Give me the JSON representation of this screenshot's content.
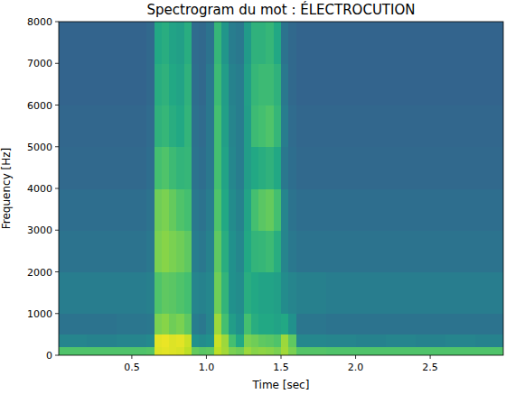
{
  "chart_data": {
    "type": "heatmap",
    "title": "Spectrogram du mot : ÉLECTROCUTION",
    "x_label": "Time [sec]",
    "y_label": "Frequency [Hz]",
    "x": [
      0.01,
      0.2,
      0.4,
      0.6,
      0.65,
      0.7,
      0.75,
      0.8,
      0.85,
      0.9,
      0.95,
      1.0,
      1.05,
      1.1,
      1.15,
      1.2,
      1.25,
      1.3,
      1.35,
      1.4,
      1.45,
      1.5,
      1.55,
      1.6,
      1.8,
      2.0,
      2.2,
      2.4,
      2.6,
      2.8,
      2.99
    ],
    "y": [
      0,
      200,
      500,
      1000,
      2000,
      3000,
      4000,
      5000,
      6000,
      7000,
      8000
    ],
    "values": [
      [
        0.72,
        0.72,
        0.72,
        0.73,
        0.95,
        0.96,
        0.95,
        0.94,
        0.9,
        0.76,
        0.74,
        0.75,
        0.9,
        0.86,
        0.8,
        0.78,
        0.85,
        0.82,
        0.83,
        0.82,
        0.8,
        0.86,
        0.8,
        0.73,
        0.72,
        0.72,
        0.72,
        0.72,
        0.72,
        0.72
      ],
      [
        0.45,
        0.44,
        0.45,
        0.47,
        0.96,
        0.97,
        0.95,
        0.96,
        0.92,
        0.5,
        0.48,
        0.5,
        0.92,
        0.85,
        0.7,
        0.6,
        0.8,
        0.78,
        0.75,
        0.74,
        0.72,
        0.85,
        0.75,
        0.46,
        0.45,
        0.44,
        0.45,
        0.44,
        0.45,
        0.44
      ],
      [
        0.38,
        0.38,
        0.39,
        0.4,
        0.8,
        0.82,
        0.78,
        0.8,
        0.75,
        0.42,
        0.4,
        0.45,
        0.85,
        0.7,
        0.55,
        0.5,
        0.7,
        0.62,
        0.6,
        0.6,
        0.58,
        0.6,
        0.5,
        0.39,
        0.38,
        0.38,
        0.38,
        0.38,
        0.38,
        0.38
      ],
      [
        0.42,
        0.42,
        0.42,
        0.43,
        0.72,
        0.75,
        0.74,
        0.72,
        0.7,
        0.45,
        0.44,
        0.46,
        0.78,
        0.65,
        0.5,
        0.48,
        0.62,
        0.6,
        0.58,
        0.58,
        0.56,
        0.48,
        0.45,
        0.43,
        0.42,
        0.42,
        0.42,
        0.42,
        0.42,
        0.42
      ],
      [
        0.38,
        0.38,
        0.38,
        0.4,
        0.8,
        0.82,
        0.8,
        0.78,
        0.75,
        0.42,
        0.4,
        0.44,
        0.75,
        0.62,
        0.5,
        0.46,
        0.6,
        0.65,
        0.66,
        0.68,
        0.62,
        0.45,
        0.4,
        0.38,
        0.38,
        0.38,
        0.38,
        0.38,
        0.38,
        0.38
      ],
      [
        0.36,
        0.36,
        0.36,
        0.38,
        0.78,
        0.8,
        0.76,
        0.72,
        0.7,
        0.4,
        0.38,
        0.42,
        0.72,
        0.6,
        0.48,
        0.44,
        0.58,
        0.7,
        0.74,
        0.76,
        0.7,
        0.45,
        0.38,
        0.36,
        0.36,
        0.36,
        0.36,
        0.36,
        0.36,
        0.36
      ],
      [
        0.34,
        0.34,
        0.34,
        0.36,
        0.7,
        0.72,
        0.68,
        0.65,
        0.66,
        0.38,
        0.36,
        0.4,
        0.7,
        0.58,
        0.46,
        0.42,
        0.55,
        0.6,
        0.62,
        0.64,
        0.6,
        0.4,
        0.36,
        0.34,
        0.34,
        0.34,
        0.34,
        0.34,
        0.34,
        0.34
      ],
      [
        0.33,
        0.33,
        0.33,
        0.35,
        0.64,
        0.66,
        0.62,
        0.6,
        0.65,
        0.37,
        0.35,
        0.4,
        0.7,
        0.56,
        0.45,
        0.42,
        0.55,
        0.68,
        0.7,
        0.72,
        0.66,
        0.42,
        0.35,
        0.33,
        0.33,
        0.33,
        0.33,
        0.33,
        0.33,
        0.33
      ],
      [
        0.32,
        0.32,
        0.32,
        0.34,
        0.62,
        0.64,
        0.6,
        0.58,
        0.64,
        0.36,
        0.34,
        0.4,
        0.68,
        0.55,
        0.44,
        0.42,
        0.56,
        0.66,
        0.68,
        0.68,
        0.64,
        0.4,
        0.34,
        0.32,
        0.32,
        0.32,
        0.32,
        0.32,
        0.32,
        0.32
      ],
      [
        0.32,
        0.32,
        0.32,
        0.34,
        0.6,
        0.62,
        0.58,
        0.56,
        0.62,
        0.35,
        0.34,
        0.38,
        0.66,
        0.52,
        0.42,
        0.4,
        0.54,
        0.64,
        0.64,
        0.66,
        0.6,
        0.38,
        0.34,
        0.32,
        0.32,
        0.32,
        0.32,
        0.32,
        0.32,
        0.32
      ]
    ],
    "color_range": [
      0,
      1
    ],
    "xlim": [
      0.01,
      2.99
    ],
    "ylim": [
      0,
      8000
    ],
    "xticks": [
      0.5,
      {
        "value": 1,
        "label": "1.0"
      },
      1.5,
      {
        "value": 2,
        "label": "2.0"
      },
      2.5
    ],
    "yticks": [
      0,
      1000,
      2000,
      3000,
      4000,
      5000,
      6000,
      7000,
      8000
    ]
  }
}
